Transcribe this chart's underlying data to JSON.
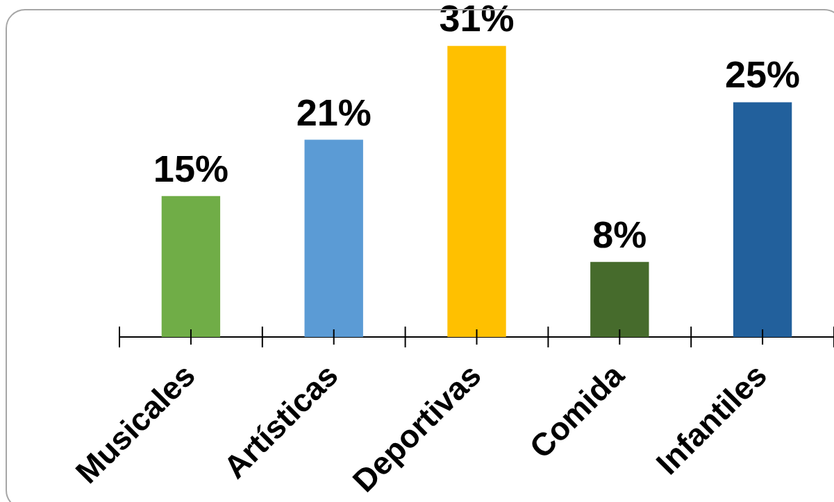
{
  "chart_data": {
    "type": "bar",
    "categories": [
      "Musicales",
      "Artísticas",
      "Deportivas",
      "Comida",
      "Infantiles"
    ],
    "values": [
      15,
      21,
      31,
      8,
      25
    ],
    "colors": [
      "#70ad47",
      "#5b9bd5",
      "#ffc000",
      "#466b2c",
      "#22609c"
    ],
    "value_labels": [
      "15%",
      "21%",
      "31%",
      "8%",
      "25%"
    ],
    "tick_labels": "x"
  }
}
